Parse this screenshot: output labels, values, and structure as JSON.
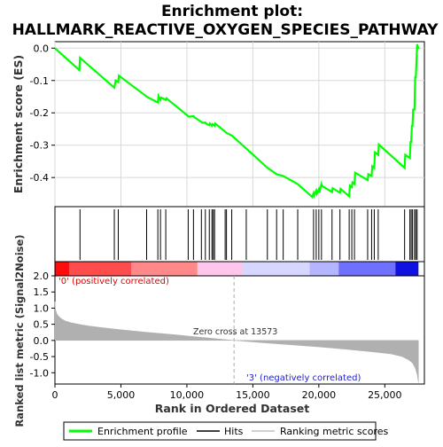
{
  "chart_data": {
    "type": "line",
    "title": "Enrichment plot:\nHALLMARK_REACTIVE_OXYGEN_SPECIES_PATHWAY",
    "title_lines": [
      "Enrichment plot:",
      "HALLMARK_REACTIVE_OXYGEN_SPECIES_PATHWAY"
    ],
    "es_panel": {
      "ylabel": "Enrichment score (ES)",
      "ylim": [
        -0.49,
        0.02
      ],
      "yticks": [
        0.0,
        -0.1,
        -0.2,
        -0.3,
        -0.4
      ],
      "ytick_labels": [
        "0.0",
        "-0.1",
        "-0.2",
        "-0.3",
        "-0.4"
      ],
      "grid": true,
      "series": {
        "name": "Enrichment profile",
        "color": "#00ff00",
        "x": [
          0,
          1850,
          1900,
          4500,
          4600,
          4800,
          4850,
          6900,
          6950,
          7800,
          7850,
          8000,
          8050,
          8400,
          8450,
          10100,
          10150,
          10500,
          10550,
          11100,
          11150,
          11400,
          11450,
          11700,
          11750,
          11900,
          11950,
          12100,
          12150,
          12900,
          13000,
          13400,
          14500,
          16100,
          16800,
          17300,
          18400,
          19500,
          19600,
          19650,
          19800,
          19850,
          20000,
          20050,
          20200,
          20250,
          21000,
          21050,
          21600,
          21650,
          22300,
          22350,
          22500,
          22550,
          22700,
          22750,
          23700,
          23750,
          24000,
          24050,
          24200,
          24250,
          24500,
          24550,
          26500,
          26550,
          26900,
          26950,
          27000,
          27050,
          27100,
          27150,
          27250,
          27300,
          27350,
          27400,
          27450,
          27550
        ],
        "y": [
          0.0,
          -0.068,
          -0.03,
          -0.122,
          -0.1,
          -0.105,
          -0.085,
          -0.148,
          -0.15,
          -0.168,
          -0.148,
          -0.16,
          -0.153,
          -0.16,
          -0.155,
          -0.21,
          -0.212,
          -0.21,
          -0.213,
          -0.228,
          -0.231,
          -0.23,
          -0.233,
          -0.238,
          -0.233,
          -0.24,
          -0.235,
          -0.24,
          -0.233,
          -0.258,
          -0.262,
          -0.27,
          -0.31,
          -0.37,
          -0.39,
          -0.395,
          -0.42,
          -0.46,
          -0.448,
          -0.455,
          -0.44,
          -0.45,
          -0.436,
          -0.446,
          -0.42,
          -0.426,
          -0.445,
          -0.433,
          -0.447,
          -0.435,
          -0.458,
          -0.425,
          -0.43,
          -0.415,
          -0.42,
          -0.385,
          -0.408,
          -0.39,
          -0.395,
          -0.365,
          -0.37,
          -0.322,
          -0.33,
          -0.298,
          -0.37,
          -0.33,
          -0.34,
          -0.29,
          -0.29,
          -0.24,
          -0.24,
          -0.19,
          -0.19,
          -0.09,
          -0.09,
          -0.04,
          0.012,
          -0.002
        ]
      }
    },
    "hits_panel": {
      "series_name": "Hits",
      "positions": [
        1900,
        4500,
        4800,
        6950,
        7800,
        8000,
        8400,
        10100,
        10500,
        11100,
        11400,
        11700,
        11900,
        12000,
        12100,
        12900,
        13000,
        13400,
        14500,
        16100,
        16800,
        17300,
        18400,
        19600,
        19800,
        20000,
        20200,
        21000,
        21600,
        22300,
        22500,
        22700,
        23700,
        24000,
        24200,
        24500,
        26500,
        26900,
        27000,
        27100,
        27250,
        27350,
        27450
      ]
    },
    "rank_panel": {
      "ylabel": "Ranked list metric (Signal2Noise)",
      "ylim": [
        -1.35,
        2.0
      ],
      "yticks": [
        2.0,
        1.5,
        1.0,
        0.5,
        0.0,
        -0.5,
        -1.0
      ],
      "ytick_labels": [
        "2.0",
        "1.5",
        "1.0",
        "0.5",
        "0.0",
        "-0.5",
        "-1.0"
      ],
      "series_name": "Ranking metric scores",
      "profile_x": [
        0,
        50,
        150,
        300,
        500,
        800,
        1200,
        1800,
        2500,
        3500,
        5000,
        7000,
        9000,
        11000,
        13573,
        16000,
        18000,
        20000,
        22000,
        24000,
        25500,
        26300,
        26800,
        27100,
        27300,
        27450,
        27550
      ],
      "profile_y": [
        1.2,
        0.95,
        0.82,
        0.74,
        0.67,
        0.6,
        0.55,
        0.5,
        0.45,
        0.4,
        0.33,
        0.25,
        0.18,
        0.1,
        0.0,
        -0.08,
        -0.14,
        -0.2,
        -0.27,
        -0.35,
        -0.42,
        -0.5,
        -0.6,
        -0.7,
        -0.85,
        -1.05,
        -1.3
      ],
      "positive_label": "'0' (positively correlated)",
      "negative_label": "'3' (negatively correlated)",
      "zero_cross_label": "Zero cross at 13573",
      "zero_cross": 13573,
      "positive_color": "#ff0000",
      "negative_color": "#0000ff"
    },
    "xlabel": "Rank in Ordered Dataset",
    "xlim": [
      0,
      28000
    ],
    "xticks": [
      0,
      5000,
      10000,
      15000,
      20000,
      25000
    ],
    "xtick_labels": [
      "0",
      "5,000",
      "10,000",
      "15,000",
      "20,000",
      "25,000"
    ],
    "gradient_segments": [
      {
        "from": 0,
        "to": 1100,
        "color": "#ff0d0d"
      },
      {
        "from": 1100,
        "to": 5800,
        "color": "#ff4c4c"
      },
      {
        "from": 5800,
        "to": 10800,
        "color": "#ff8888"
      },
      {
        "from": 10800,
        "to": 14200,
        "color": "#ffc6ec"
      },
      {
        "from": 14200,
        "to": 19300,
        "color": "#d6d6ff"
      },
      {
        "from": 19300,
        "to": 21500,
        "color": "#b4b4ff"
      },
      {
        "from": 21500,
        "to": 25800,
        "color": "#7070ff"
      },
      {
        "from": 25800,
        "to": 27550,
        "color": "#1010e0"
      }
    ],
    "legend": {
      "placement": "bottom",
      "entries": [
        {
          "label": "Enrichment profile",
          "color": "#00ff00",
          "style": "line"
        },
        {
          "label": "Hits",
          "color": "#000000",
          "style": "line"
        },
        {
          "label": "Ranking metric scores",
          "color": "#c0c0c0",
          "style": "line"
        }
      ]
    }
  }
}
